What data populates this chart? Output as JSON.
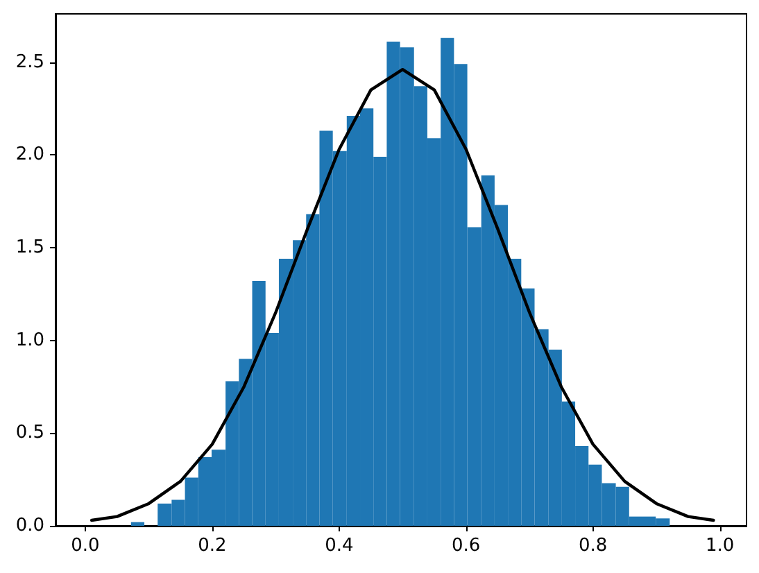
{
  "chart_data": {
    "type": "histogram",
    "color": "#1f77b4",
    "bins": [
      0.072,
      0.093,
      0.114,
      0.136,
      0.157,
      0.178,
      0.199,
      0.221,
      0.242,
      0.263,
      0.284,
      0.305,
      0.327,
      0.348,
      0.369,
      0.39,
      0.412,
      0.433,
      0.454,
      0.475,
      0.496,
      0.518,
      0.539,
      0.56,
      0.581,
      0.602,
      0.624,
      0.645,
      0.666,
      0.687,
      0.708,
      0.73,
      0.751,
      0.772,
      0.793,
      0.814,
      0.836,
      0.857,
      0.878,
      0.899,
      0.921
    ],
    "values": [
      0.02,
      0,
      0.12,
      0.14,
      0.26,
      0.37,
      0.41,
      0.78,
      0.9,
      1.32,
      1.04,
      1.44,
      1.54,
      1.68,
      2.13,
      2.02,
      2.21,
      2.25,
      1.99,
      2.61,
      2.58,
      2.37,
      2.09,
      2.63,
      2.49,
      1.61,
      1.89,
      1.73,
      1.44,
      1.28,
      1.06,
      0.95,
      0.67,
      0.43,
      0.33,
      0.23,
      0.21,
      0.05,
      0.05,
      0.04
    ],
    "series": [
      {
        "type": "line",
        "color": "#000000",
        "x": [
          0.01,
          0.05,
          0.1,
          0.15,
          0.2,
          0.25,
          0.3,
          0.35,
          0.4,
          0.45,
          0.5,
          0.55,
          0.6,
          0.65,
          0.7,
          0.75,
          0.8,
          0.85,
          0.9,
          0.95,
          0.99
        ],
        "values": [
          0.03,
          0.05,
          0.12,
          0.24,
          0.44,
          0.75,
          1.15,
          1.6,
          2.03,
          2.35,
          2.46,
          2.35,
          2.03,
          1.6,
          1.15,
          0.75,
          0.44,
          0.24,
          0.12,
          0.05,
          0.03
        ]
      }
    ],
    "xlim": [
      -0.047,
      1.042
    ],
    "ylim": [
      0,
      2.76
    ],
    "xticks": [
      {
        "value": 0,
        "label": "0.0"
      },
      0.2,
      0.4,
      0.6,
      0.8,
      {
        "value": 1,
        "label": "1.0"
      }
    ],
    "yticks": [
      {
        "value": 0,
        "label": "0.0"
      },
      0.5,
      {
        "value": 1,
        "label": "1.0"
      },
      1.5,
      {
        "value": 2,
        "label": "2.0"
      },
      2.5
    ],
    "grid": false,
    "marker": "none",
    "line_style": "solid"
  }
}
